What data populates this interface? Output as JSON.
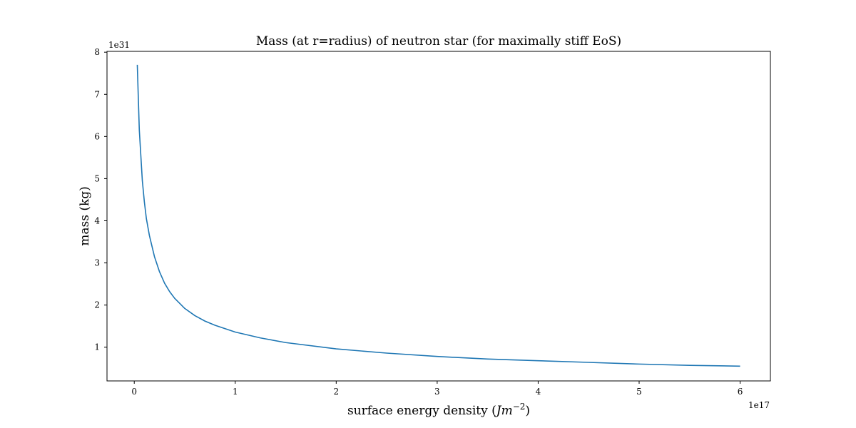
{
  "chart_data": {
    "type": "line",
    "title": "Mass (at r=radius) of neutron star (for maximally stiff EoS)",
    "xlabel": "surface energy density (Jm^{-2})",
    "xlabel_parts": {
      "prefix": "surface energy density (",
      "J": "J",
      "m": "m",
      "exponent": "−2",
      "suffix": ")"
    },
    "ylabel": "mass (kg)",
    "x_offset_label": "1e17",
    "y_offset_label": "1e31",
    "xlim": [
      -0.27,
      6.3
    ],
    "ylim": [
      0.2,
      8.02
    ],
    "x_ticks": [
      0,
      1,
      2,
      3,
      4,
      5,
      6
    ],
    "x_tick_labels": [
      "0",
      "1",
      "2",
      "3",
      "4",
      "5",
      "6"
    ],
    "y_ticks": [
      1,
      2,
      3,
      4,
      5,
      6,
      7,
      8
    ],
    "y_tick_labels": [
      "1",
      "2",
      "3",
      "4",
      "5",
      "6",
      "7",
      "8"
    ],
    "grid": false,
    "legend": "none",
    "line_color": "#1f77b4",
    "series": [
      {
        "x": [
          0.03,
          0.05,
          0.08,
          0.1,
          0.12,
          0.15,
          0.18,
          0.2,
          0.25,
          0.3,
          0.35,
          0.4,
          0.5,
          0.6,
          0.7,
          0.8,
          1.0,
          1.25,
          1.5,
          2.0,
          2.5,
          3.0,
          3.5,
          4.0,
          4.5,
          5.0,
          5.5,
          6.0
        ],
        "y": [
          7.7,
          6.15,
          4.95,
          4.45,
          4.05,
          3.65,
          3.35,
          3.15,
          2.79,
          2.52,
          2.32,
          2.16,
          1.92,
          1.75,
          1.62,
          1.52,
          1.36,
          1.22,
          1.11,
          0.96,
          0.86,
          0.78,
          0.72,
          0.68,
          0.64,
          0.6,
          0.57,
          0.55
        ]
      }
    ]
  }
}
